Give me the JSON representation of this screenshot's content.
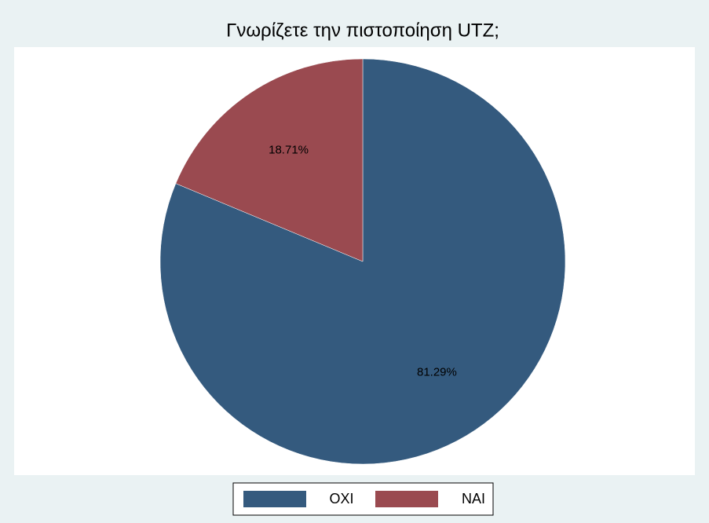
{
  "chart_data": {
    "type": "pie",
    "title": "Γνωρίζετε την πιστοποίηση UTZ;",
    "categories": [
      "OXI",
      "NAI"
    ],
    "values": [
      81.29,
      18.71
    ],
    "value_labels": [
      "81.29%",
      "18.71%"
    ],
    "colors": [
      "#345a7e",
      "#9a4a50"
    ],
    "legend": "bottom"
  }
}
